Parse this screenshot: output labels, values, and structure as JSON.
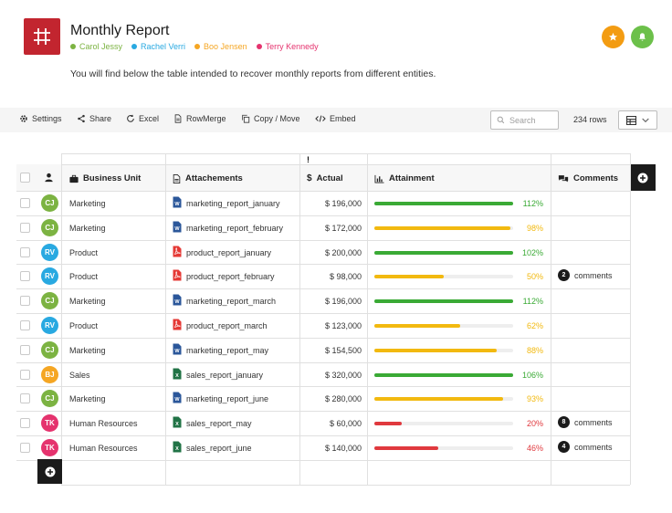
{
  "header": {
    "title": "Monthly Report",
    "description": "You will find below the table intended to recover monthly reports from different entities.",
    "users": [
      {
        "name": "Carol Jessy",
        "color": "#7cb342"
      },
      {
        "name": "Rachel Verri",
        "color": "#29a9e1"
      },
      {
        "name": "Boo Jensen",
        "color": "#f5a623"
      },
      {
        "name": "Terry Kennedy",
        "color": "#e5336e"
      }
    ],
    "star_button_color": "#f39c12",
    "bell_button_color": "#6cc04a"
  },
  "toolbar": {
    "items": [
      {
        "label": "Settings",
        "icon": "gear-icon"
      },
      {
        "label": "Share",
        "icon": "share-icon"
      },
      {
        "label": "Excel",
        "icon": "refresh-icon"
      },
      {
        "label": "RowMerge",
        "icon": "document-icon"
      },
      {
        "label": "Copy / Move",
        "icon": "copy-icon"
      },
      {
        "label": "Embed",
        "icon": "code-icon"
      }
    ],
    "search_placeholder": "Search",
    "row_count": "234 rows"
  },
  "table": {
    "warning_mark": "!",
    "columns": {
      "business_unit": "Business Unit",
      "attachments": "Attachements",
      "actual": "Actual",
      "attainment": "Attainment",
      "comments": "Comments"
    },
    "rows": [
      {
        "initials": "CJ",
        "avatar_color": "#7cb342",
        "unit": "Marketing",
        "file": "marketing_report_january",
        "file_type": "word",
        "actual": "$ 196,000",
        "attainment": 112,
        "pct": "112%",
        "level": "green",
        "comments": null
      },
      {
        "initials": "CJ",
        "avatar_color": "#7cb342",
        "unit": "Marketing",
        "file": "marketing_report_february",
        "file_type": "word",
        "actual": "$ 172,000",
        "attainment": 98,
        "pct": "98%",
        "level": "yellow",
        "comments": null
      },
      {
        "initials": "RV",
        "avatar_color": "#29a9e1",
        "unit": "Product",
        "file": "product_report_january",
        "file_type": "pdf",
        "actual": "$ 200,000",
        "attainment": 102,
        "pct": "102%",
        "level": "green",
        "comments": null
      },
      {
        "initials": "RV",
        "avatar_color": "#29a9e1",
        "unit": "Product",
        "file": "product_report_february",
        "file_type": "pdf",
        "actual": "$ 98,000",
        "attainment": 50,
        "pct": "50%",
        "level": "yellow",
        "comments": {
          "count": "2",
          "label": "comments"
        }
      },
      {
        "initials": "CJ",
        "avatar_color": "#7cb342",
        "unit": "Marketing",
        "file": "marketing_report_march",
        "file_type": "word",
        "actual": "$ 196,000",
        "attainment": 112,
        "pct": "112%",
        "level": "green",
        "comments": null
      },
      {
        "initials": "RV",
        "avatar_color": "#29a9e1",
        "unit": "Product",
        "file": "product_report_march",
        "file_type": "pdf",
        "actual": "$ 123,000",
        "attainment": 62,
        "pct": "62%",
        "level": "yellow",
        "comments": null
      },
      {
        "initials": "CJ",
        "avatar_color": "#7cb342",
        "unit": "Marketing",
        "file": "marketing_report_may",
        "file_type": "word",
        "actual": "$ 154,500",
        "attainment": 88,
        "pct": "88%",
        "level": "yellow",
        "comments": null
      },
      {
        "initials": "BJ",
        "avatar_color": "#f5a623",
        "unit": "Sales",
        "file": "sales_report_january",
        "file_type": "excel",
        "actual": "$ 320,000",
        "attainment": 106,
        "pct": "106%",
        "level": "green",
        "comments": null
      },
      {
        "initials": "CJ",
        "avatar_color": "#7cb342",
        "unit": "Marketing",
        "file": "marketing_report_june",
        "file_type": "word",
        "actual": "$ 280,000",
        "attainment": 93,
        "pct": "93%",
        "level": "yellow",
        "comments": null
      },
      {
        "initials": "TK",
        "avatar_color": "#e5336e",
        "unit": "Human Resources",
        "file": "sales_report_may",
        "file_type": "excel",
        "actual": "$ 60,000",
        "attainment": 20,
        "pct": "20%",
        "level": "red",
        "comments": {
          "count": "8",
          "label": "comments"
        }
      },
      {
        "initials": "TK",
        "avatar_color": "#e5336e",
        "unit": "Human Resources",
        "file": "sales_report_june",
        "file_type": "excel",
        "actual": "$ 140,000",
        "attainment": 46,
        "pct": "46%",
        "level": "red",
        "comments": {
          "count": "4",
          "label": "comments"
        }
      }
    ]
  },
  "colors": {
    "green": "#3aaa35",
    "yellow": "#f2b90f",
    "red": "#e0393e",
    "word": "#2b579a",
    "pdf": "#e53935",
    "excel": "#217346"
  }
}
